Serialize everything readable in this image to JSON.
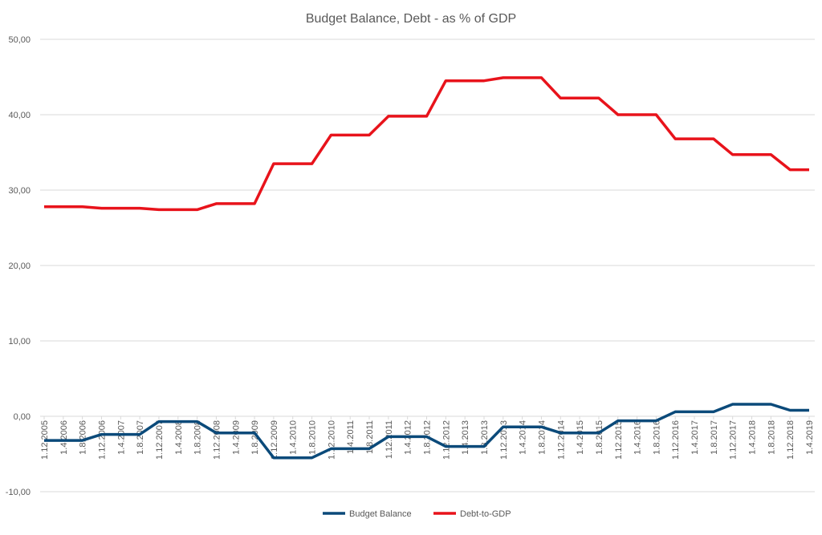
{
  "chart_data": {
    "type": "line",
    "title": "Budget Balance, Debt - as % of GDP",
    "xlabel": "",
    "ylabel": "",
    "ylim": [
      -10,
      50
    ],
    "yticks": [
      "-10,00",
      "0,00",
      "10,00",
      "20,00",
      "30,00",
      "40,00",
      "50,00"
    ],
    "ytick_values": [
      -10,
      0,
      10,
      20,
      30,
      40,
      50
    ],
    "grid": true,
    "legend_position": "bottom",
    "categories": [
      "1.12.2005",
      "1.4.2006",
      "1.8.2006",
      "1.12.2006",
      "1.4.2007",
      "1.8.2007",
      "1.12.2007",
      "1.4.2008",
      "1.8.2008",
      "1.12.2008",
      "1.4.2009",
      "1.8.2009",
      "1.12.2009",
      "1.4.2010",
      "1.8.2010",
      "1.12.2010",
      "1.4.2011",
      "1.8.2011",
      "1.12.2011",
      "1.4.2012",
      "1.8.2012",
      "1.12.2012",
      "1.4.2013",
      "1.8.2013",
      "1.12.2013",
      "1.4.2014",
      "1.8.2014",
      "1.12.2014",
      "1.4.2015",
      "1.8.2015",
      "1.12.2015",
      "1.4.2016",
      "1.8.2016",
      "1.12.2016",
      "1.4.2017",
      "1.8.2017",
      "1.12.2017",
      "1.4.2018",
      "1.8.2018",
      "1.12.2018",
      "1.4.2019"
    ],
    "series": [
      {
        "name": "Budget Balance",
        "color": "#0b4a7a",
        "values": [
          -3.2,
          -3.2,
          -3.2,
          -2.4,
          -2.4,
          -2.4,
          -0.7,
          -0.7,
          -0.7,
          -2.2,
          -2.2,
          -2.2,
          -5.5,
          -5.5,
          -5.5,
          -4.3,
          -4.3,
          -4.3,
          -2.7,
          -2.7,
          -2.7,
          -4.0,
          -4.0,
          -4.0,
          -1.4,
          -1.4,
          -1.4,
          -2.2,
          -2.2,
          -2.2,
          -0.6,
          -0.6,
          -0.6,
          0.6,
          0.6,
          0.6,
          1.6,
          1.6,
          1.6,
          0.8,
          0.8
        ]
      },
      {
        "name": "Debt-to-GDP",
        "color": "#e8131b",
        "values": [
          27.8,
          27.8,
          27.8,
          27.6,
          27.6,
          27.6,
          27.4,
          27.4,
          27.4,
          28.2,
          28.2,
          28.2,
          33.5,
          33.5,
          33.5,
          37.3,
          37.3,
          37.3,
          39.8,
          39.8,
          39.8,
          44.5,
          44.5,
          44.5,
          44.9,
          44.9,
          44.9,
          42.2,
          42.2,
          42.2,
          40.0,
          40.0,
          40.0,
          36.8,
          36.8,
          36.8,
          34.7,
          34.7,
          34.7,
          32.7,
          32.7
        ]
      }
    ]
  }
}
